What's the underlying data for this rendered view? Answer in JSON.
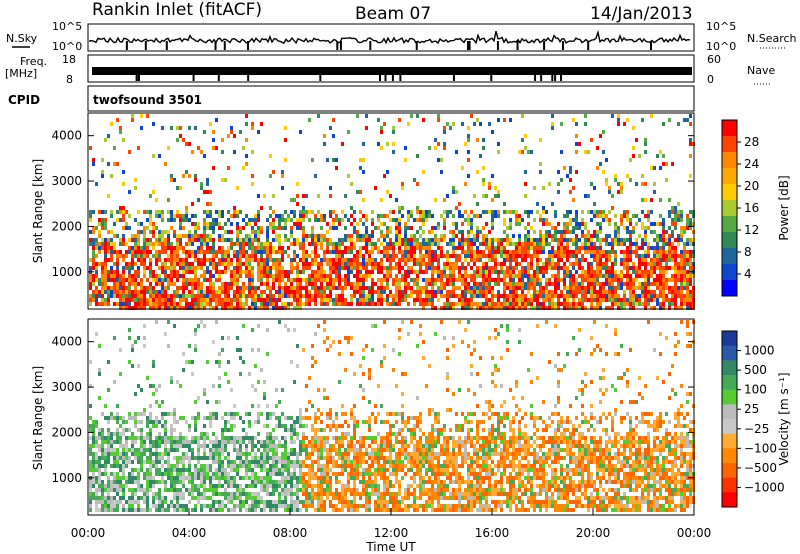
{
  "header": {
    "station": "Rankin Inlet (fitACF)",
    "beam": "Beam 07",
    "date": "14/Jan/2013"
  },
  "noise_panel": {
    "left_label": "N.Sky",
    "right_label": "N.Search",
    "y_top": "10^5",
    "y_bottom": "10^0"
  },
  "freq_panel": {
    "left_label_line1": "Freq.",
    "left_label_line2": "[MHz]",
    "right_label": "Nave",
    "left_ticks": [
      "18",
      "8"
    ],
    "right_ticks": [
      "60",
      "0"
    ]
  },
  "cpid_panel": {
    "label": "CPID",
    "value": "twofsound 3501"
  },
  "chart_data": [
    {
      "type": "heatmap",
      "ylabel": "Slant Range [km]",
      "yticks": [
        1000,
        2000,
        3000,
        4000
      ],
      "ylim": [
        180,
        4500
      ],
      "colorbar_label": "Power [dB]",
      "colorbar_ticks": [
        "28",
        "24",
        "20",
        "16",
        "12",
        "8",
        "4"
      ],
      "colorbar_colors": [
        "#ff0000",
        "#ff4400",
        "#ff8800",
        "#ffaa00",
        "#ffcc00",
        "#aacc33",
        "#55aa44",
        "#338855",
        "#226699",
        "#1144cc",
        "#0000ff"
      ]
    },
    {
      "type": "heatmap",
      "ylabel": "Slant Range [km]",
      "yticks": [
        1000,
        2000,
        3000,
        4000
      ],
      "ylim": [
        180,
        4500
      ],
      "xlabel": "Time UT",
      "xticks": [
        "00:00",
        "04:00",
        "08:00",
        "12:00",
        "16:00",
        "20:00",
        "00:00"
      ],
      "colorbar_label": "Velocity [m s⁻¹]",
      "colorbar_ticks": [
        "1000",
        "500",
        "100",
        "25",
        "−25",
        "−100",
        "−500",
        "−1000"
      ],
      "colorbar_colors": [
        "#1a3a9a",
        "#2a5aa8",
        "#338866",
        "#44aa55",
        "#55cc33",
        "#bbbbbb",
        "#c8c8c8",
        "#ffaa33",
        "#ff8800",
        "#ff6600",
        "#ff3300",
        "#ff0000"
      ]
    }
  ]
}
